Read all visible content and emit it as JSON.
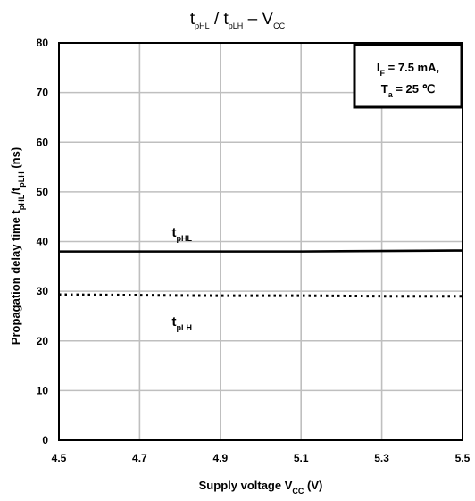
{
  "chart_data": {
    "type": "line",
    "title": {
      "parts": [
        {
          "text": "t"
        },
        {
          "text": "pHL",
          "sub": true
        },
        {
          "text": " / t"
        },
        {
          "text": "pLH",
          "sub": true
        },
        {
          "text": " – V"
        },
        {
          "text": "CC",
          "sub": true
        }
      ]
    },
    "xlabel": {
      "parts": [
        {
          "text": "Supply voltage   V"
        },
        {
          "text": "CC",
          "sub": true
        },
        {
          "text": "  (V)"
        }
      ]
    },
    "ylabel": {
      "parts": [
        {
          "text": "Propagation delay time   t"
        },
        {
          "text": "pHL",
          "sub": true
        },
        {
          "text": "/t"
        },
        {
          "text": "pLH",
          "sub": true
        },
        {
          "text": "  (ns)"
        }
      ]
    },
    "xlim": [
      4.5,
      5.5
    ],
    "ylim": [
      0,
      80
    ],
    "xticks": [
      4.5,
      4.7,
      4.9,
      5.1,
      5.3,
      5.5
    ],
    "xtick_labels": [
      "4.5",
      "4.7",
      "4.9",
      "5.1",
      "5.3",
      "5.5"
    ],
    "yticks": [
      0,
      10,
      20,
      30,
      40,
      50,
      60,
      70,
      80
    ],
    "ytick_labels": [
      "0",
      "10",
      "20",
      "30",
      "40",
      "50",
      "60",
      "70",
      "80"
    ],
    "grid": true,
    "series": [
      {
        "name": "tpHL",
        "label_parts": [
          {
            "text": "t"
          },
          {
            "text": "pHL",
            "sub": true
          }
        ],
        "style": "solid",
        "x": [
          4.5,
          4.7,
          4.9,
          5.1,
          5.3,
          5.5
        ],
        "y": [
          38.0,
          38.0,
          38.0,
          38.0,
          38.1,
          38.2
        ],
        "label_at": [
          4.78,
          41
        ]
      },
      {
        "name": "tpLH",
        "label_parts": [
          {
            "text": "t"
          },
          {
            "text": "pLH",
            "sub": true
          }
        ],
        "style": "dotted",
        "x": [
          4.5,
          4.7,
          4.9,
          5.1,
          5.3,
          5.5
        ],
        "y": [
          29.3,
          29.2,
          29.1,
          29.1,
          29.0,
          29.0
        ],
        "label_at": [
          4.78,
          23
        ]
      }
    ],
    "annotation": {
      "lines": [
        [
          {
            "text": "I"
          },
          {
            "text": "F",
            "sub": true
          },
          {
            "text": " = 7.5 mA,"
          }
        ],
        [
          {
            "text": "T"
          },
          {
            "text": "a",
            "sub": true
          },
          {
            "text": " = 25 ℃"
          }
        ]
      ],
      "placement": "top-right"
    }
  }
}
